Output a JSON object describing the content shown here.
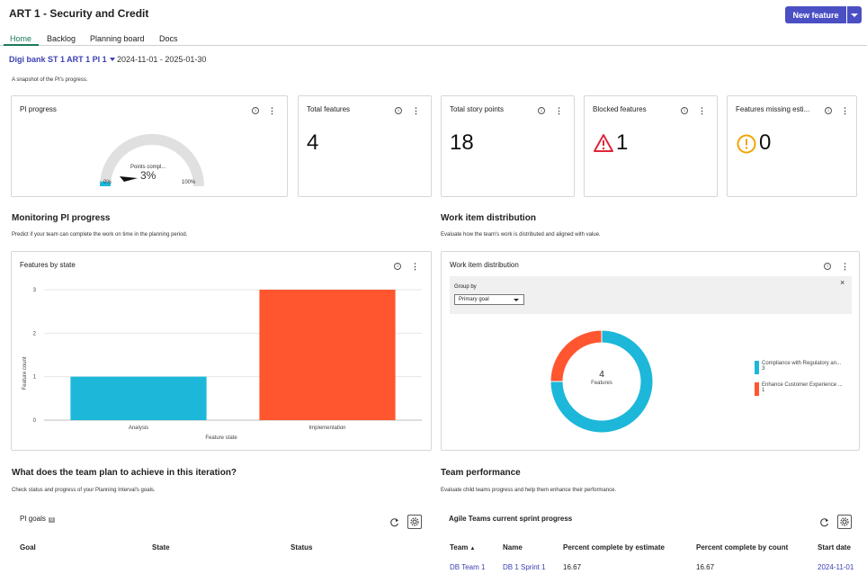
{
  "header": {
    "title": "ART 1 - Security and Credit",
    "new_feature_label": "New feature"
  },
  "tabs": [
    {
      "label": "Home",
      "active": true
    },
    {
      "label": "Backlog"
    },
    {
      "label": "Planning board"
    },
    {
      "label": "Docs"
    }
  ],
  "pi": {
    "selector": "Digi bank ST 1 ART 1 PI 1",
    "date_range": "2024-11-01 - 2025-01-30",
    "snapshot_text": "A snapshot of the PI's progress."
  },
  "cards": {
    "pi_progress": {
      "title": "PI progress",
      "gauge_label": "Points compl...",
      "value": "3%",
      "min": "0%",
      "max": "100%",
      "percent": 3
    },
    "total_features": {
      "title": "Total features",
      "value": "4"
    },
    "total_story_points": {
      "title": "Total story points",
      "value": "18"
    },
    "blocked_features": {
      "title": "Blocked features",
      "value": "1"
    },
    "missing_estimates": {
      "title": "Features missing esti...",
      "value": "0"
    }
  },
  "monitoring": {
    "heading": "Monitoring PI progress",
    "subtitle": "Predict if your team can complete the work on time in the planning period.",
    "card_title": "Features by state"
  },
  "distribution": {
    "heading": "Work item distribution",
    "subtitle": "Evaluate how the team's work is distributed and aligned with value.",
    "card_title": "Work item distribution",
    "group_by_label": "Group by",
    "group_by_value": "Primary goal",
    "center_value": "4",
    "center_label": "Features",
    "legend": [
      {
        "name": "Compliance with Regulatory an...",
        "count": "3",
        "color": "#1cb7d9"
      },
      {
        "name": "Enhance Customer Experience ...",
        "count": "1",
        "color": "#ff5630"
      }
    ]
  },
  "chart_data": [
    {
      "type": "bar",
      "categories": [
        "Analysis",
        "Implementation"
      ],
      "values": [
        1,
        3
      ],
      "colors": [
        "#1cb7d9",
        "#ff5630"
      ],
      "xlabel": "Feature state",
      "ylabel": "Feature count",
      "ylim": [
        0,
        3
      ],
      "yticks": [
        "0",
        "1",
        "2",
        "3"
      ],
      "grid": true
    },
    {
      "type": "pie",
      "variant": "donut",
      "labels": [
        "Compliance with Regulatory an...",
        "Enhance Customer Experience ..."
      ],
      "values": [
        3,
        1
      ],
      "colors": [
        "#1cb7d9",
        "#ff5630"
      ]
    }
  ],
  "iteration": {
    "heading": "What does the team plan to achieve in this iteration?",
    "subtitle": "Check status and progress of your Planning Interval's goals.",
    "card_title": "PI goals",
    "badge": "0",
    "columns": [
      "Goal",
      "State",
      "Status"
    ]
  },
  "performance": {
    "heading": "Team performance",
    "subtitle": "Evaluate child teams progress and help them enhance their performance.",
    "card_title": "Agile Teams current sprint progress",
    "columns": [
      "Team",
      "Name",
      "Percent complete by estimate",
      "Percent complete by count",
      "Start date"
    ],
    "rows": [
      [
        "DB Team 1",
        "DB 1 Sprint 1",
        "16.67",
        "16.67",
        "2024-11-01"
      ]
    ]
  }
}
